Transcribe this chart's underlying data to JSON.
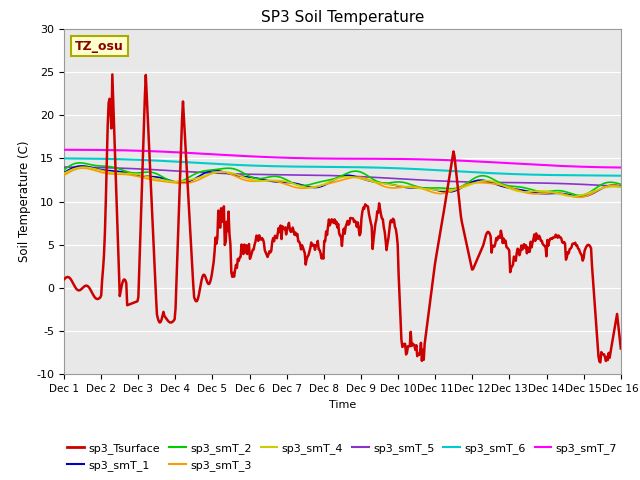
{
  "title": "SP3 Soil Temperature",
  "ylabel": "Soil Temperature (C)",
  "xlabel": "Time",
  "annotation": "TZ_osu",
  "ylim": [
    -10,
    30
  ],
  "xlim": [
    0,
    15
  ],
  "background_color": "#e8e8e8",
  "series_colors": {
    "sp3_Tsurface": "#cc0000",
    "sp3_smT_1": "#0000cc",
    "sp3_smT_2": "#00cc00",
    "sp3_smT_3": "#ff9900",
    "sp3_smT_4": "#cccc00",
    "sp3_smT_5": "#8833cc",
    "sp3_smT_6": "#00cccc",
    "sp3_smT_7": "#ff00ff"
  },
  "x_ticks": [
    "Dec 1",
    "Dec 2",
    "Dec 3",
    "Dec 4",
    "Dec 5",
    "Dec 6",
    "Dec 7",
    "Dec 8",
    "Dec 9",
    "Dec 10",
    "Dec 11",
    "Dec 12",
    "Dec 13",
    "Dec 14",
    "Dec 15",
    "Dec 16"
  ],
  "yticks": [
    -10,
    -5,
    0,
    5,
    10,
    15,
    20,
    25,
    30
  ],
  "n_points": 600
}
